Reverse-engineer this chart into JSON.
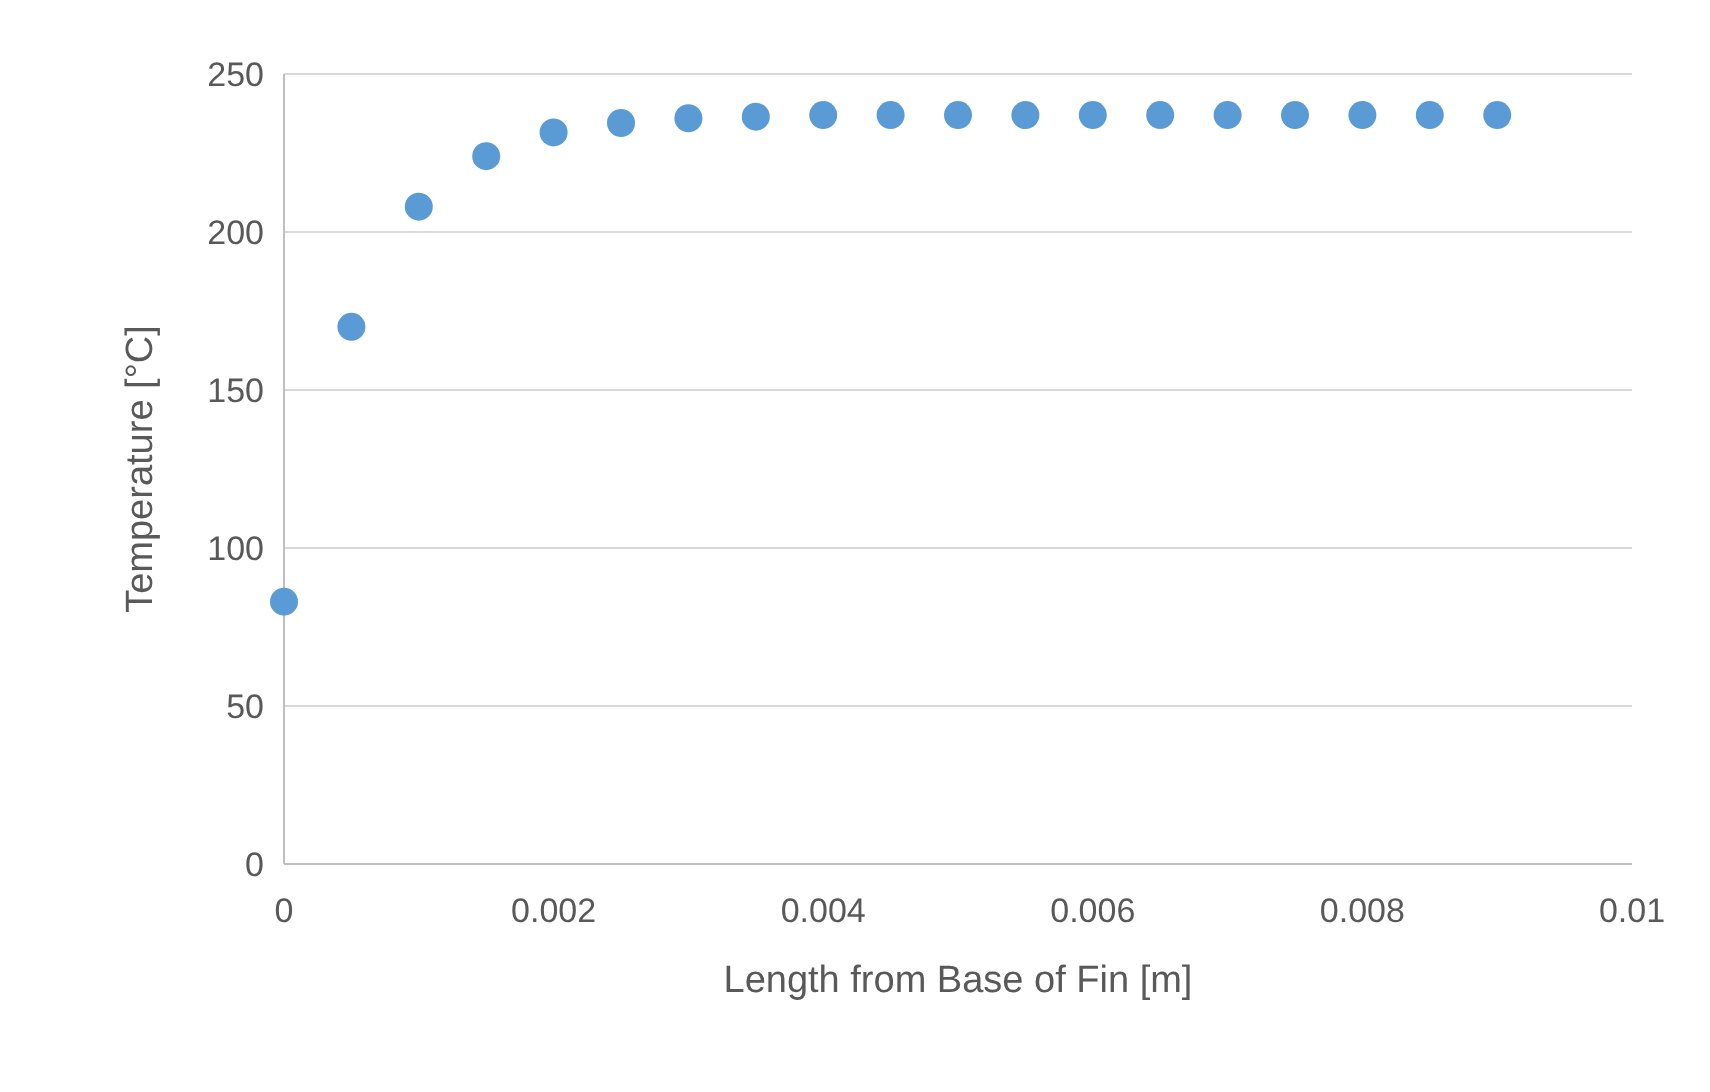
{
  "chart_data": {
    "type": "scatter",
    "xlabel": "Length from Base of Fin [m]",
    "ylabel": "Temperature [°C]",
    "x": [
      0,
      0.0005,
      0.001,
      0.0015,
      0.002,
      0.0025,
      0.003,
      0.0035,
      0.004,
      0.0045,
      0.005,
      0.0055,
      0.006,
      0.0065,
      0.007,
      0.0075,
      0.008,
      0.0085,
      0.009
    ],
    "series": [
      {
        "color": "#5b9bd5",
        "values": [
          83,
          170,
          208,
          224,
          231.5,
          234.5,
          236,
          236.5,
          237,
          237,
          237,
          237,
          237,
          237,
          237,
          237,
          237,
          237,
          237
        ]
      }
    ],
    "xlim": [
      0,
      0.01
    ],
    "xticks": [
      0,
      0.002,
      0.004,
      0.006,
      0.008,
      0.01
    ],
    "ylim": [
      0,
      250
    ],
    "yticks": [
      0,
      50,
      100,
      150,
      200,
      250
    ],
    "grid": "y",
    "marker": "circle"
  }
}
